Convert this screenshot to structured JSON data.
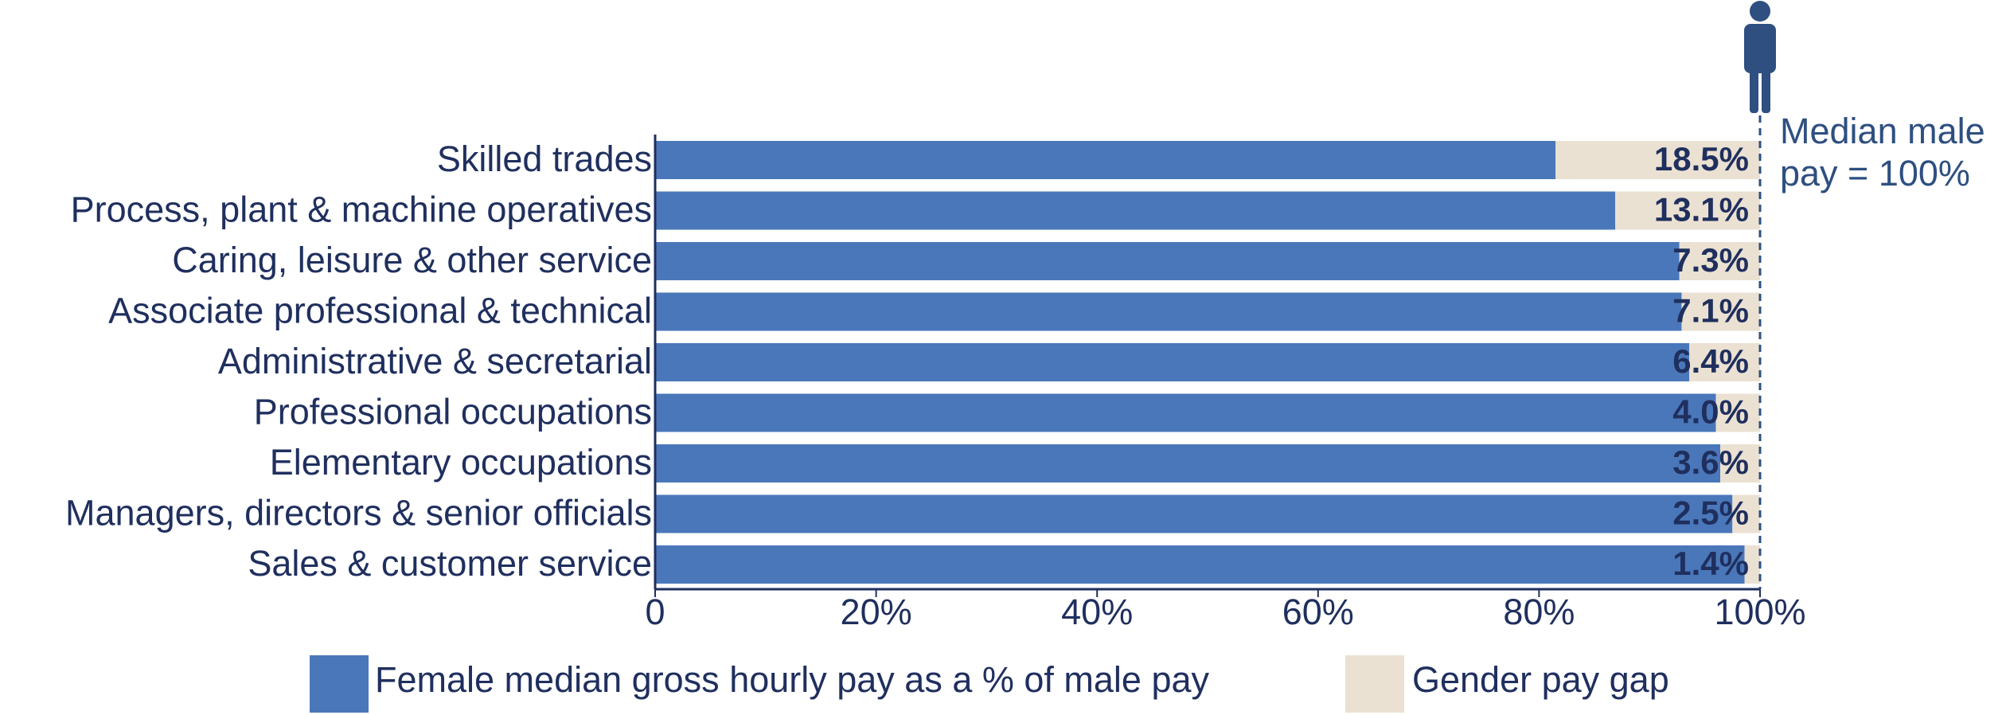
{
  "chart_data": {
    "type": "stacked_barh",
    "categories": [
      "Skilled trades",
      "Process, plant & machine operatives",
      "Caring, leisure & other service",
      "Associate professional & technical",
      "Administrative & secretarial",
      "Professional occupations",
      "Elementary occupations",
      "Managers, directors & senior officials",
      "Sales & customer service"
    ],
    "series": [
      {
        "name": "Female median gross hourly pay as a % of male pay",
        "color": "#4a77b9",
        "values": [
          81.5,
          86.9,
          92.7,
          92.9,
          93.6,
          96.0,
          96.4,
          97.5,
          98.6
        ]
      },
      {
        "name": "Gender pay gap",
        "color": "#ebe1d2",
        "values": [
          18.5,
          13.1,
          7.3,
          7.1,
          6.4,
          4.0,
          3.6,
          2.5,
          1.4
        ],
        "value_labels": [
          "18.5%",
          "13.1%",
          "7.3%",
          "7.1%",
          "6.4%",
          "4.0%",
          "3.6%",
          "2.5%",
          "1.4%"
        ]
      }
    ],
    "xlim": [
      0,
      100
    ],
    "xticks": [
      0,
      {
        "value": 20,
        "label": "20%"
      },
      {
        "value": 40,
        "label": "40%"
      },
      {
        "value": 60,
        "label": "60%"
      },
      {
        "value": 80,
        "label": "80%"
      },
      {
        "value": 100,
        "label": "100%"
      }
    ],
    "annotation": [
      "Median male",
      "pay = 100%"
    ],
    "legend": "bottom"
  }
}
